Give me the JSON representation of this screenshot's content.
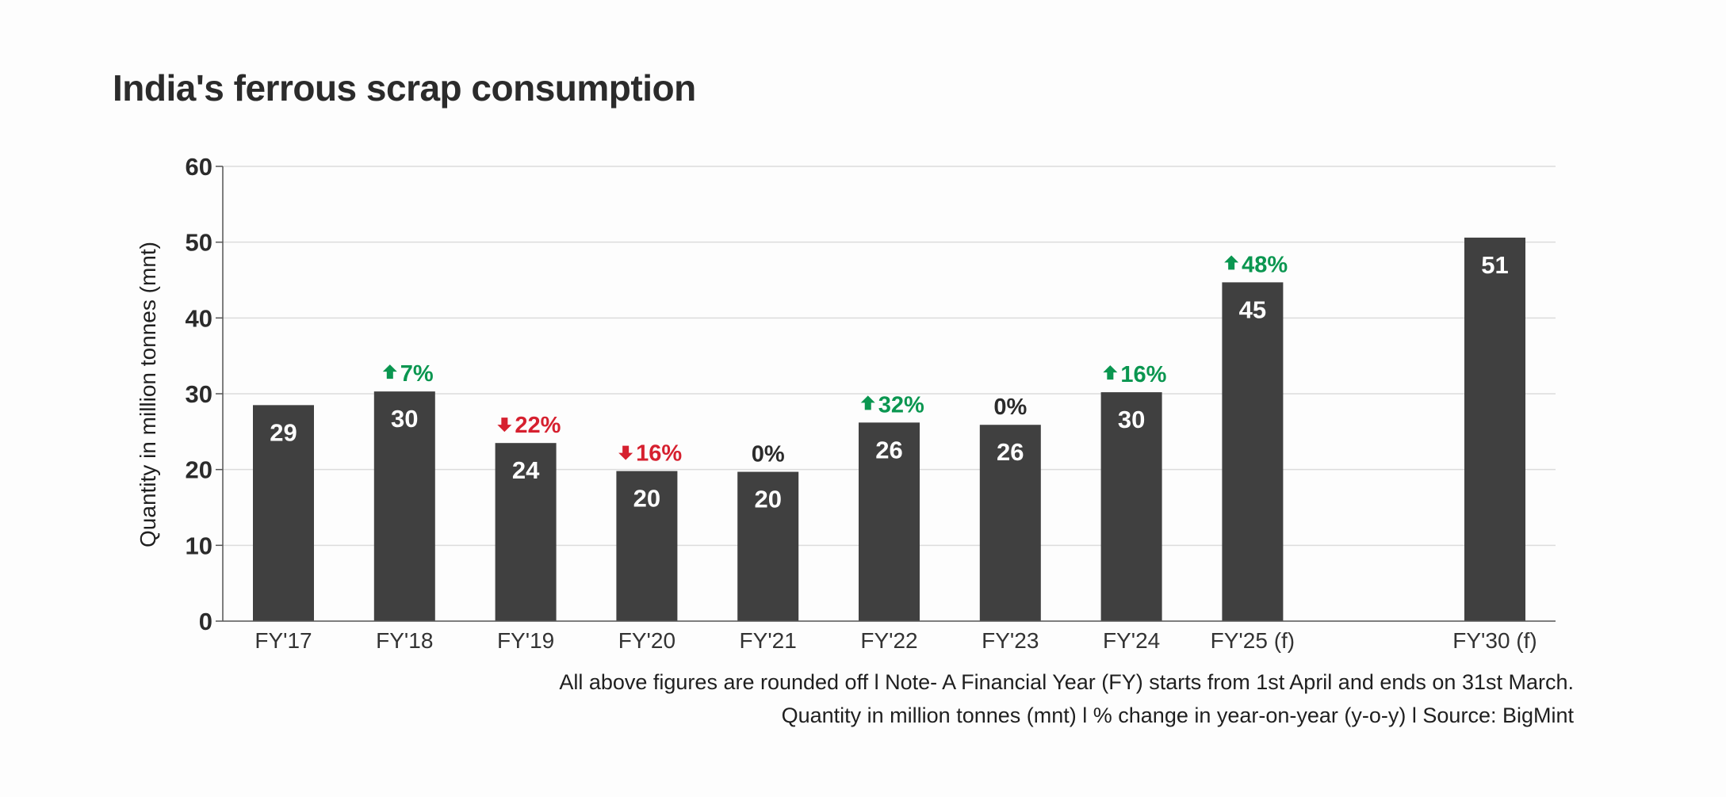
{
  "title": "India's ferrous scrap consumption",
  "chart_data": {
    "type": "bar",
    "categories": [
      "FY'17",
      "FY'18",
      "FY'19",
      "FY'20",
      "FY'21",
      "FY'22",
      "FY'23",
      "FY'24",
      "FY'25 (f)",
      "FY'30 (f)"
    ],
    "values": [
      28.5,
      30.3,
      23.5,
      19.8,
      19.7,
      26.2,
      25.9,
      30.2,
      44.7,
      50.6
    ],
    "value_labels": [
      "29",
      "30",
      "24",
      "20",
      "20",
      "26",
      "26",
      "30",
      "45",
      "51"
    ],
    "changes": [
      null,
      {
        "text": "7%",
        "dir": "up"
      },
      {
        "text": "22%",
        "dir": "down"
      },
      {
        "text": "16%",
        "dir": "down"
      },
      {
        "text": "0%",
        "dir": "flat"
      },
      {
        "text": "32%",
        "dir": "up"
      },
      {
        "text": "0%",
        "dir": "flat"
      },
      {
        "text": "16%",
        "dir": "up"
      },
      {
        "text": "48%",
        "dir": "up"
      },
      null
    ],
    "ylabel": "Quantity in million tonnes (mnt)",
    "ylim": [
      0,
      60
    ],
    "yticks": [
      0,
      10,
      20,
      30,
      40,
      50,
      60
    ],
    "grid": true,
    "legend": "none"
  },
  "notes": {
    "line1": "All above figures are rounded off  l  Note- A Financial Year (FY) starts from 1st April and ends on 31st March.",
    "line2": "Quantity in million tonnes (mnt)  l  % change in year-on-year (y-o-y)  l  Source: BigMint"
  },
  "colors": {
    "bar": "#404040",
    "up": "#0a9650",
    "down": "#d6202f",
    "flat": "#2b2b2b",
    "grid": "#dcdcdc",
    "axis": "#555555"
  }
}
